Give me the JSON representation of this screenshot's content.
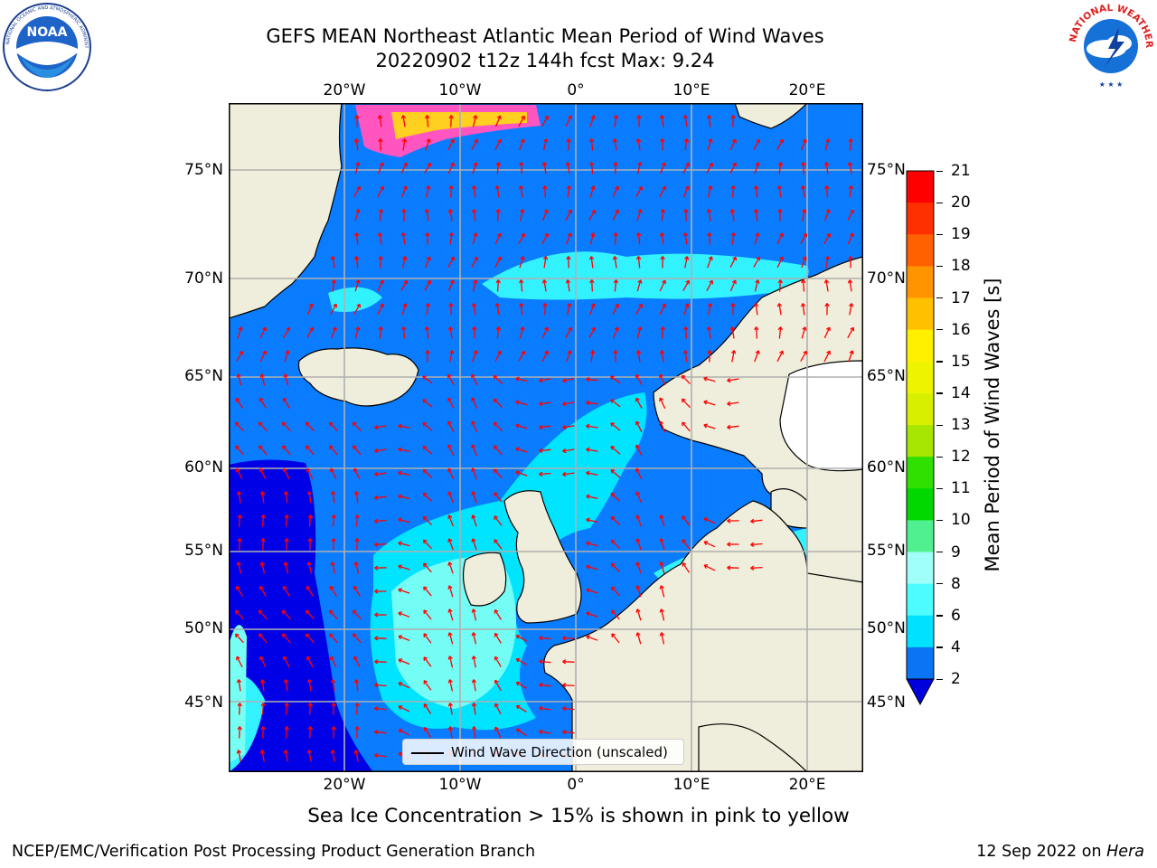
{
  "header": {
    "title_line1": "GEFS MEAN Northeast Atlantic Mean Period of Wind Waves",
    "title_line2": "20220902 t12z 144h fcst   Max: 9.24"
  },
  "logos": {
    "left": {
      "name": "noaa-logo",
      "text": "NOAA",
      "ring_text": "NATIONAL OCEANIC AND ATMOSPHERIC ADMINISTRATION · U.S. DEPARTMENT OF COMMERCE"
    },
    "right": {
      "name": "nws-logo",
      "ring_text": "NATIONAL WEATHER SERVICE"
    }
  },
  "map": {
    "lon_labels": [
      "20°W",
      "10°W",
      "0°",
      "10°E",
      "20°E"
    ],
    "lat_labels": [
      "75°N",
      "70°N",
      "65°N",
      "60°N",
      "55°N",
      "50°N",
      "45°N"
    ],
    "legend_label": "Wind Wave Direction (unscaled)",
    "colors": {
      "land": "#efeddb",
      "open_water": "#0a7cff",
      "coast": "#000000",
      "arrows": "#ff0000",
      "grid": "#b0b0b0",
      "sea_ice": "#ff55c0"
    }
  },
  "colorbar": {
    "label": "Mean Period of Wind Waves [s]",
    "ticks": [
      "2",
      "4",
      "6",
      "8",
      "9",
      "10",
      "11",
      "12",
      "13",
      "14",
      "15",
      "16",
      "17",
      "18",
      "19",
      "20",
      "21"
    ],
    "colors": [
      "#0a74f5",
      "#00e0ff",
      "#4dfcff",
      "#a0fff8",
      "#50f090",
      "#00d800",
      "#30e000",
      "#a6e600",
      "#d8f000",
      "#eef400",
      "#fff000",
      "#ffc000",
      "#ff9400",
      "#ff6000",
      "#ff3000",
      "#ff0000"
    ],
    "extend_color": "#0000dd"
  },
  "footer": {
    "note": "Sea Ice Concentration > 15% is shown in pink to yellow",
    "left": "NCEP/EMC/Verification Post Processing Product Generation Branch",
    "date_prefix": "12 Sep 2022 on",
    "machine": "Hera"
  }
}
